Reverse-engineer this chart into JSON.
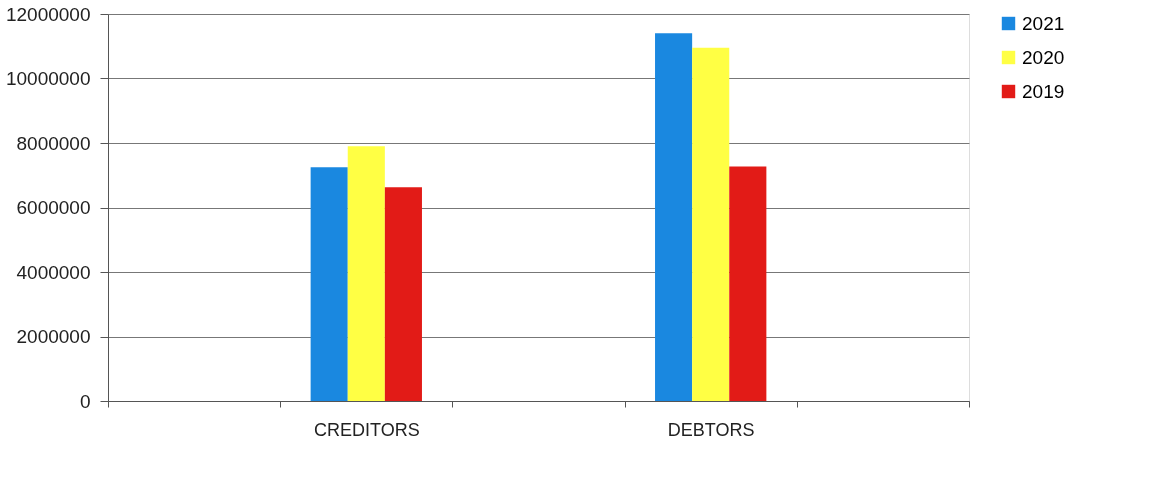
{
  "chart_data": {
    "type": "bar",
    "categories": [
      null,
      "CREDITORS",
      null,
      "DEBTORS",
      null
    ],
    "series": [
      {
        "name": "2021",
        "color": "#1a88e0",
        "values": [
          null,
          7250000,
          null,
          11400000,
          null
        ]
      },
      {
        "name": "2020",
        "color": "#ffff44",
        "values": [
          null,
          7900000,
          null,
          10950000,
          null
        ]
      },
      {
        "name": "2019",
        "color": "#e21b17",
        "values": [
          null,
          6630000,
          null,
          7270000,
          null
        ]
      }
    ],
    "ylim": [
      0,
      12000000
    ],
    "yticks": [
      0,
      2000000,
      4000000,
      6000000,
      8000000,
      10000000,
      12000000
    ],
    "grid": "y",
    "legend": "right"
  }
}
